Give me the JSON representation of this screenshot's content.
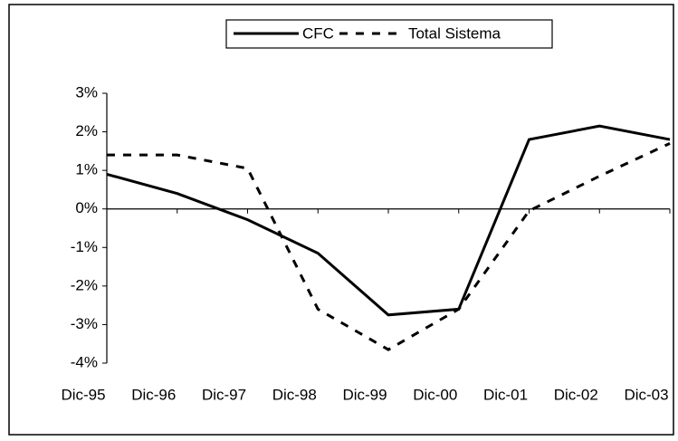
{
  "chart_data": {
    "type": "line",
    "categories": [
      "Dic-95",
      "Dic-96",
      "Dic-97",
      "Dic-98",
      "Dic-99",
      "Dic-00",
      "Dic-01",
      "Dic-02",
      "Dic-03"
    ],
    "series": [
      {
        "name": "CFC",
        "color": "#000000",
        "dash": "solid",
        "values": [
          0.9,
          0.4,
          -0.28,
          -1.15,
          -2.75,
          -2.6,
          1.8,
          2.15,
          1.8
        ]
      },
      {
        "name": "Total Sistema",
        "color": "#000000",
        "dash": "dashed",
        "values": [
          1.4,
          1.4,
          1.05,
          -2.6,
          -3.65,
          -2.6,
          -0.05,
          0.85,
          1.7
        ]
      }
    ],
    "ylim": [
      -4,
      3
    ],
    "yticks": [
      {
        "value": -4,
        "label": "-4%"
      },
      {
        "value": -3,
        "label": "-3%"
      },
      {
        "value": -2,
        "label": "-2%"
      },
      {
        "value": -1,
        "label": "-1%"
      },
      {
        "value": 0,
        "label": "0%"
      },
      {
        "value": 1,
        "label": "1%"
      },
      {
        "value": 2,
        "label": "2%"
      },
      {
        "value": 3,
        "label": "3%"
      }
    ],
    "legend": "top"
  }
}
